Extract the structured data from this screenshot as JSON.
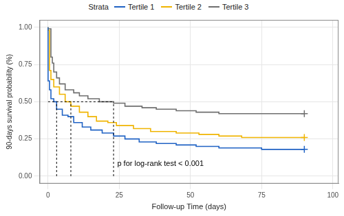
{
  "chart_data": {
    "type": "line",
    "line_style": "step",
    "legend_title": "Strata",
    "legend": "top",
    "grid": true,
    "x_label": "Follow-up Time (days)",
    "y_label": "90-days survival probability (%)",
    "xlim": [
      -3,
      102
    ],
    "xticks": [
      0,
      25,
      50,
      75,
      100
    ],
    "ylim": [
      -0.05,
      1.05
    ],
    "yticks": [
      {
        "value": 0,
        "label": "0.00"
      },
      {
        "value": 0.25,
        "label": "0.25"
      },
      {
        "value": 0.5,
        "label": "0.50"
      },
      {
        "value": 0.75,
        "label": "0.75"
      },
      {
        "value": 1,
        "label": "1.00"
      }
    ],
    "annotation": "p for log-rank test < 0.001",
    "median_lines": {
      "y": 0.5,
      "x": [
        3,
        8,
        23
      ]
    },
    "series": [
      {
        "name": "Tertile 1",
        "color": "#1f62c4",
        "marker": "cross",
        "x": [
          0,
          0.5,
          1,
          2,
          3,
          5,
          7,
          9,
          12,
          15,
          19,
          23,
          27,
          32,
          38,
          45,
          52,
          60,
          75,
          85,
          90
        ],
        "values": [
          1.0,
          0.64,
          0.58,
          0.52,
          0.5,
          0.45,
          0.41,
          0.4,
          0.36,
          0.33,
          0.31,
          0.29,
          0.27,
          0.25,
          0.23,
          0.22,
          0.21,
          0.2,
          0.19,
          0.18,
          0.18
        ]
      },
      {
        "name": "Tertile 2",
        "color": "#f0b400",
        "marker": "cross",
        "x": [
          0,
          0.5,
          1,
          2,
          4,
          6,
          8,
          11,
          14,
          17,
          21,
          24,
          30,
          36,
          45,
          53,
          60,
          68,
          78,
          90
        ],
        "values": [
          1.0,
          0.98,
          0.71,
          0.65,
          0.6,
          0.55,
          0.5,
          0.47,
          0.43,
          0.4,
          0.37,
          0.36,
          0.34,
          0.32,
          0.3,
          0.29,
          0.28,
          0.27,
          0.26,
          0.26
        ]
      },
      {
        "name": "Tertile 3",
        "color": "#6e6e6e",
        "marker": "cross",
        "x": [
          0,
          1,
          1.5,
          2,
          3,
          4,
          6,
          9,
          11,
          14,
          18,
          23,
          27,
          33,
          38,
          45,
          52,
          60,
          70,
          90
        ],
        "values": [
          1.0,
          0.99,
          0.8,
          0.76,
          0.7,
          0.66,
          0.62,
          0.58,
          0.56,
          0.54,
          0.52,
          0.5,
          0.49,
          0.47,
          0.46,
          0.45,
          0.44,
          0.43,
          0.42,
          0.42
        ]
      }
    ]
  }
}
